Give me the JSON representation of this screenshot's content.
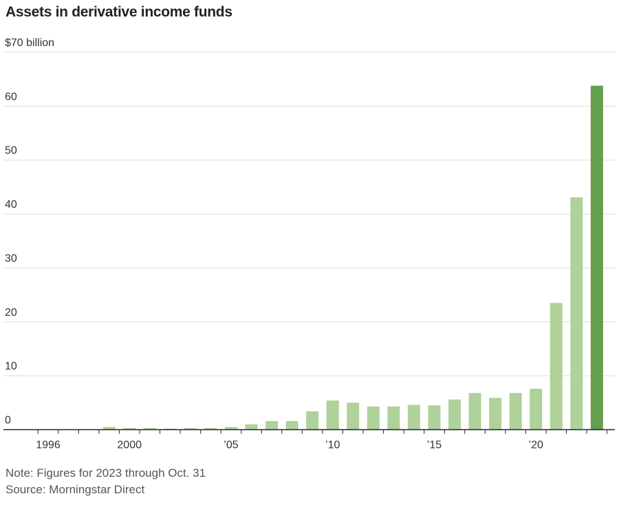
{
  "chart_data": {
    "type": "bar",
    "title": "Assets in derivative income funds",
    "unit_label": "$70 billion",
    "x": [
      1996,
      1997,
      1998,
      1999,
      2000,
      2001,
      2002,
      2003,
      2004,
      2005,
      2006,
      2007,
      2008,
      2009,
      2010,
      2011,
      2012,
      2013,
      2014,
      2015,
      2016,
      2017,
      2018,
      2019,
      2020,
      2021,
      2022,
      2023
    ],
    "values": [
      0,
      0,
      0,
      0.5,
      0.3,
      0.3,
      0.2,
      0.3,
      0.3,
      0.5,
      1.0,
      1.6,
      1.6,
      3.4,
      5.4,
      5.0,
      4.3,
      4.3,
      4.6,
      4.5,
      5.6,
      6.8,
      5.9,
      6.8,
      7.6,
      23.5,
      43.1,
      63.8
    ],
    "highlight_index": 27,
    "x_tick_labels": [
      {
        "year": 1996,
        "label": "1996"
      },
      {
        "year": 2000,
        "label": "2000"
      },
      {
        "year": 2005,
        "label": "’05"
      },
      {
        "year": 2010,
        "label": "’10"
      },
      {
        "year": 2015,
        "label": "’15"
      },
      {
        "year": 2020,
        "label": "’20"
      }
    ],
    "y_ticks": [
      {
        "value": 0,
        "label": "0"
      },
      {
        "value": 10,
        "label": "10"
      },
      {
        "value": 20,
        "label": "20"
      },
      {
        "value": 30,
        "label": "30"
      },
      {
        "value": 40,
        "label": "40"
      },
      {
        "value": 50,
        "label": "50"
      },
      {
        "value": 60,
        "label": "60"
      },
      {
        "value": 70,
        "label": "$70 billion"
      }
    ],
    "ylim": [
      0,
      70
    ],
    "colors": {
      "bar": "#aed29a",
      "highlight": "#639f4c",
      "grid": "#dcdcdc",
      "axis": "#222222"
    }
  },
  "footer": {
    "note": "Note: Figures for 2023 through Oct. 31",
    "source": "Source: Morningstar Direct"
  }
}
